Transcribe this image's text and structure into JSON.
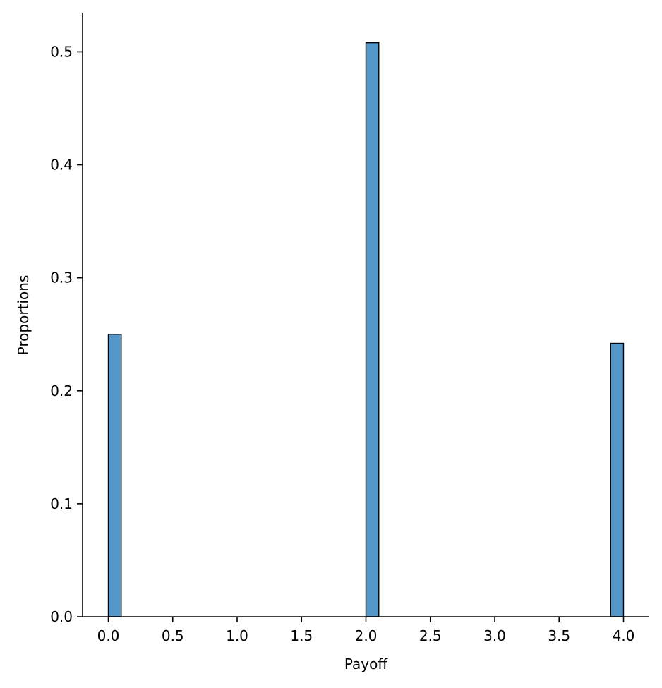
{
  "chart_data": {
    "type": "bar",
    "title": "",
    "xlabel": "Payoff",
    "ylabel": "Proportions",
    "xlim": [
      -0.2,
      4.2
    ],
    "ylim": [
      0,
      0.534
    ],
    "x_ticks": [
      "0.0",
      "0.5",
      "1.0",
      "1.5",
      "2.0",
      "2.5",
      "3.0",
      "3.5",
      "4.0"
    ],
    "y_ticks": [
      "0.0",
      "0.1",
      "0.2",
      "0.3",
      "0.4",
      "0.5"
    ],
    "bin_width": 0.1,
    "bars": [
      {
        "x_start": 0.0,
        "x_end": 0.1,
        "value": 0.25
      },
      {
        "x_start": 2.0,
        "x_end": 2.1,
        "value": 0.508
      },
      {
        "x_start": 3.9,
        "x_end": 4.0,
        "value": 0.242
      }
    ],
    "bar_color": "#5497c9",
    "grid": false,
    "legend": "none"
  }
}
